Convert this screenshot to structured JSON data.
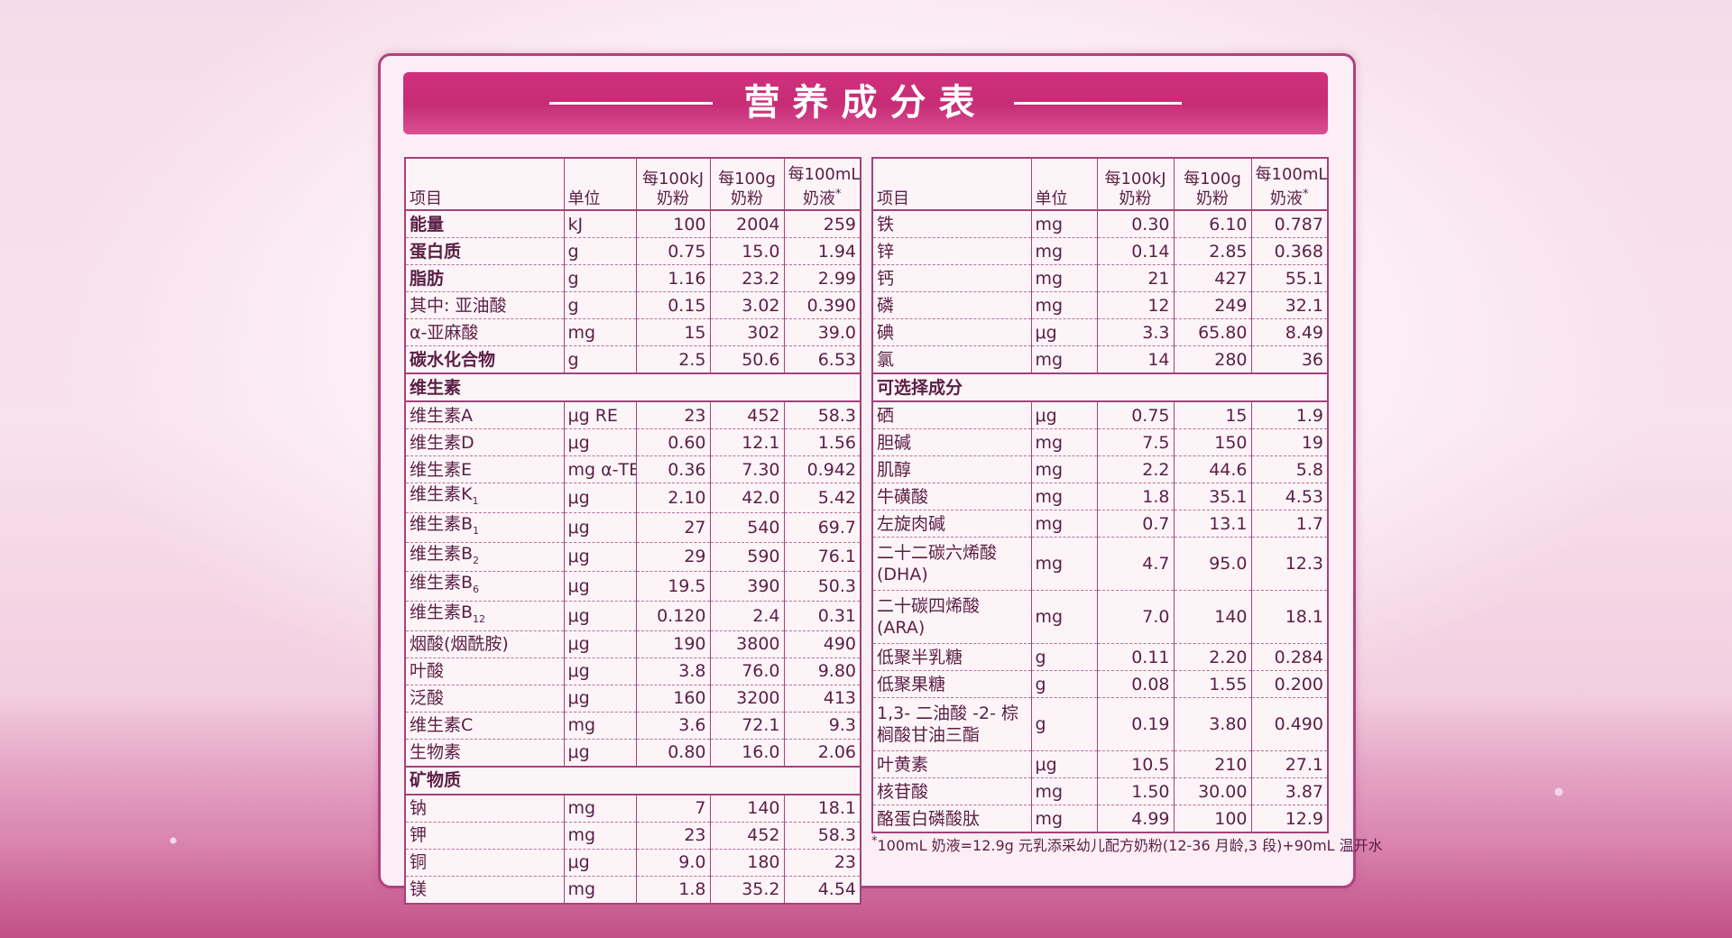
{
  "title": "营养成分表",
  "left_table": {
    "headers": [
      {
        "lines": [
          "项目"
        ]
      },
      {
        "lines": [
          "单位"
        ]
      },
      {
        "lines": [
          "每100kJ",
          "奶粉"
        ]
      },
      {
        "lines": [
          "每100g",
          "奶粉"
        ]
      },
      {
        "lines": [
          "每100mL",
          "奶液"
        ],
        "mark": "*"
      }
    ],
    "rows": [
      {
        "name": "能量",
        "unit": "kJ",
        "values": [
          "100",
          "2004",
          "259"
        ],
        "bold": true
      },
      {
        "name": "蛋白质",
        "unit": "g",
        "values": [
          "0.75",
          "15.0",
          "1.94"
        ],
        "bold": true
      },
      {
        "name": "脂肪",
        "unit": "g",
        "values": [
          "1.16",
          "23.2",
          "2.99"
        ],
        "bold": true
      },
      {
        "name": "其中: 亚油酸",
        "unit": "g",
        "values": [
          "0.15",
          "3.02",
          "0.390"
        ]
      },
      {
        "name": "α-亚麻酸",
        "unit": "mg",
        "values": [
          "15",
          "302",
          "39.0"
        ]
      },
      {
        "name": "碳水化合物",
        "unit": "g",
        "values": [
          "2.5",
          "50.6",
          "6.53"
        ],
        "bold": true
      },
      {
        "section": "维生素"
      },
      {
        "name": "维生素A",
        "unit": "μg RE",
        "values": [
          "23",
          "452",
          "58.3"
        ]
      },
      {
        "name": "维生素D",
        "unit": "μg",
        "values": [
          "0.60",
          "12.1",
          "1.56"
        ]
      },
      {
        "name": "维生素E",
        "unit": "mg α-TE",
        "values": [
          "0.36",
          "7.30",
          "0.942"
        ]
      },
      {
        "name": "维生素K",
        "sub": "1",
        "unit": "μg",
        "values": [
          "2.10",
          "42.0",
          "5.42"
        ]
      },
      {
        "name": "维生素B",
        "sub": "1",
        "unit": "μg",
        "values": [
          "27",
          "540",
          "69.7"
        ]
      },
      {
        "name": "维生素B",
        "sub": "2",
        "unit": "μg",
        "values": [
          "29",
          "590",
          "76.1"
        ]
      },
      {
        "name": "维生素B",
        "sub": "6",
        "unit": "μg",
        "values": [
          "19.5",
          "390",
          "50.3"
        ]
      },
      {
        "name": "维生素B",
        "sub": "12",
        "unit": "μg",
        "values": [
          "0.120",
          "2.4",
          "0.31"
        ]
      },
      {
        "name": "烟酸(烟酰胺)",
        "unit": "μg",
        "values": [
          "190",
          "3800",
          "490"
        ]
      },
      {
        "name": "叶酸",
        "unit": "μg",
        "values": [
          "3.8",
          "76.0",
          "9.80"
        ]
      },
      {
        "name": "泛酸",
        "unit": "μg",
        "values": [
          "160",
          "3200",
          "413"
        ]
      },
      {
        "name": "维生素C",
        "unit": "mg",
        "values": [
          "3.6",
          "72.1",
          "9.3"
        ]
      },
      {
        "name": "生物素",
        "unit": "μg",
        "values": [
          "0.80",
          "16.0",
          "2.06"
        ]
      },
      {
        "section": "矿物质"
      },
      {
        "name": "钠",
        "unit": "mg",
        "values": [
          "7",
          "140",
          "18.1"
        ]
      },
      {
        "name": "钾",
        "unit": "mg",
        "values": [
          "23",
          "452",
          "58.3"
        ]
      },
      {
        "name": "铜",
        "unit": "μg",
        "values": [
          "9.0",
          "180",
          "23"
        ]
      },
      {
        "name": "镁",
        "unit": "mg",
        "values": [
          "1.8",
          "35.2",
          "4.54"
        ]
      }
    ]
  },
  "right_table": {
    "headers": [
      {
        "lines": [
          "项目"
        ]
      },
      {
        "lines": [
          "单位"
        ]
      },
      {
        "lines": [
          "每100kJ",
          "奶粉"
        ]
      },
      {
        "lines": [
          "每100g",
          "奶粉"
        ]
      },
      {
        "lines": [
          "每100mL",
          "奶液"
        ],
        "mark": "*"
      }
    ],
    "rows": [
      {
        "name": "铁",
        "unit": "mg",
        "values": [
          "0.30",
          "6.10",
          "0.787"
        ]
      },
      {
        "name": "锌",
        "unit": "mg",
        "values": [
          "0.14",
          "2.85",
          "0.368"
        ]
      },
      {
        "name": "钙",
        "unit": "mg",
        "values": [
          "21",
          "427",
          "55.1"
        ]
      },
      {
        "name": "磷",
        "unit": "mg",
        "values": [
          "12",
          "249",
          "32.1"
        ]
      },
      {
        "name": "碘",
        "unit": "μg",
        "values": [
          "3.3",
          "65.80",
          "8.49"
        ]
      },
      {
        "name": "氯",
        "unit": "mg",
        "values": [
          "14",
          "280",
          "36"
        ]
      },
      {
        "section": "可选择成分"
      },
      {
        "name": "硒",
        "unit": "μg",
        "values": [
          "0.75",
          "15",
          "1.9"
        ]
      },
      {
        "name": "胆碱",
        "unit": "mg",
        "values": [
          "7.5",
          "150",
          "19"
        ]
      },
      {
        "name": "肌醇",
        "unit": "mg",
        "values": [
          "2.2",
          "44.6",
          "5.8"
        ]
      },
      {
        "name": "牛磺酸",
        "unit": "mg",
        "values": [
          "1.8",
          "35.1",
          "4.53"
        ]
      },
      {
        "name": "左旋肉碱",
        "unit": "mg",
        "values": [
          "0.7",
          "13.1",
          "1.7"
        ]
      },
      {
        "name_lines": [
          "二十二碳六烯酸",
          "(DHA)"
        ],
        "unit": "mg",
        "values": [
          "4.7",
          "95.0",
          "12.3"
        ]
      },
      {
        "name_lines": [
          "二十碳四烯酸",
          "(ARA)"
        ],
        "unit": "mg",
        "values": [
          "7.0",
          "140",
          "18.1"
        ]
      },
      {
        "name": "低聚半乳糖",
        "unit": "g",
        "values": [
          "0.11",
          "2.20",
          "0.284"
        ]
      },
      {
        "name": "低聚果糖",
        "unit": "g",
        "values": [
          "0.08",
          "1.55",
          "0.200"
        ]
      },
      {
        "name_lines": [
          "1,3- 二油酸 -2- 棕",
          "榈酸甘油三酯"
        ],
        "unit": "g",
        "values": [
          "0.19",
          "3.80",
          "0.490"
        ]
      },
      {
        "name": "叶黄素",
        "unit": "μg",
        "values": [
          "10.5",
          "210",
          "27.1"
        ]
      },
      {
        "name": "核苷酸",
        "unit": "mg",
        "values": [
          "1.50",
          "30.00",
          "3.87"
        ]
      },
      {
        "name": "酪蛋白磷酸肽",
        "unit": "mg",
        "values": [
          "4.99",
          "100",
          "12.9"
        ]
      }
    ]
  },
  "footnote_mark": "*",
  "footnote": "100mL 奶液=12.9g 元乳添采幼儿配方奶粉(12-36 月龄,3 段)+90mL 温开水"
}
